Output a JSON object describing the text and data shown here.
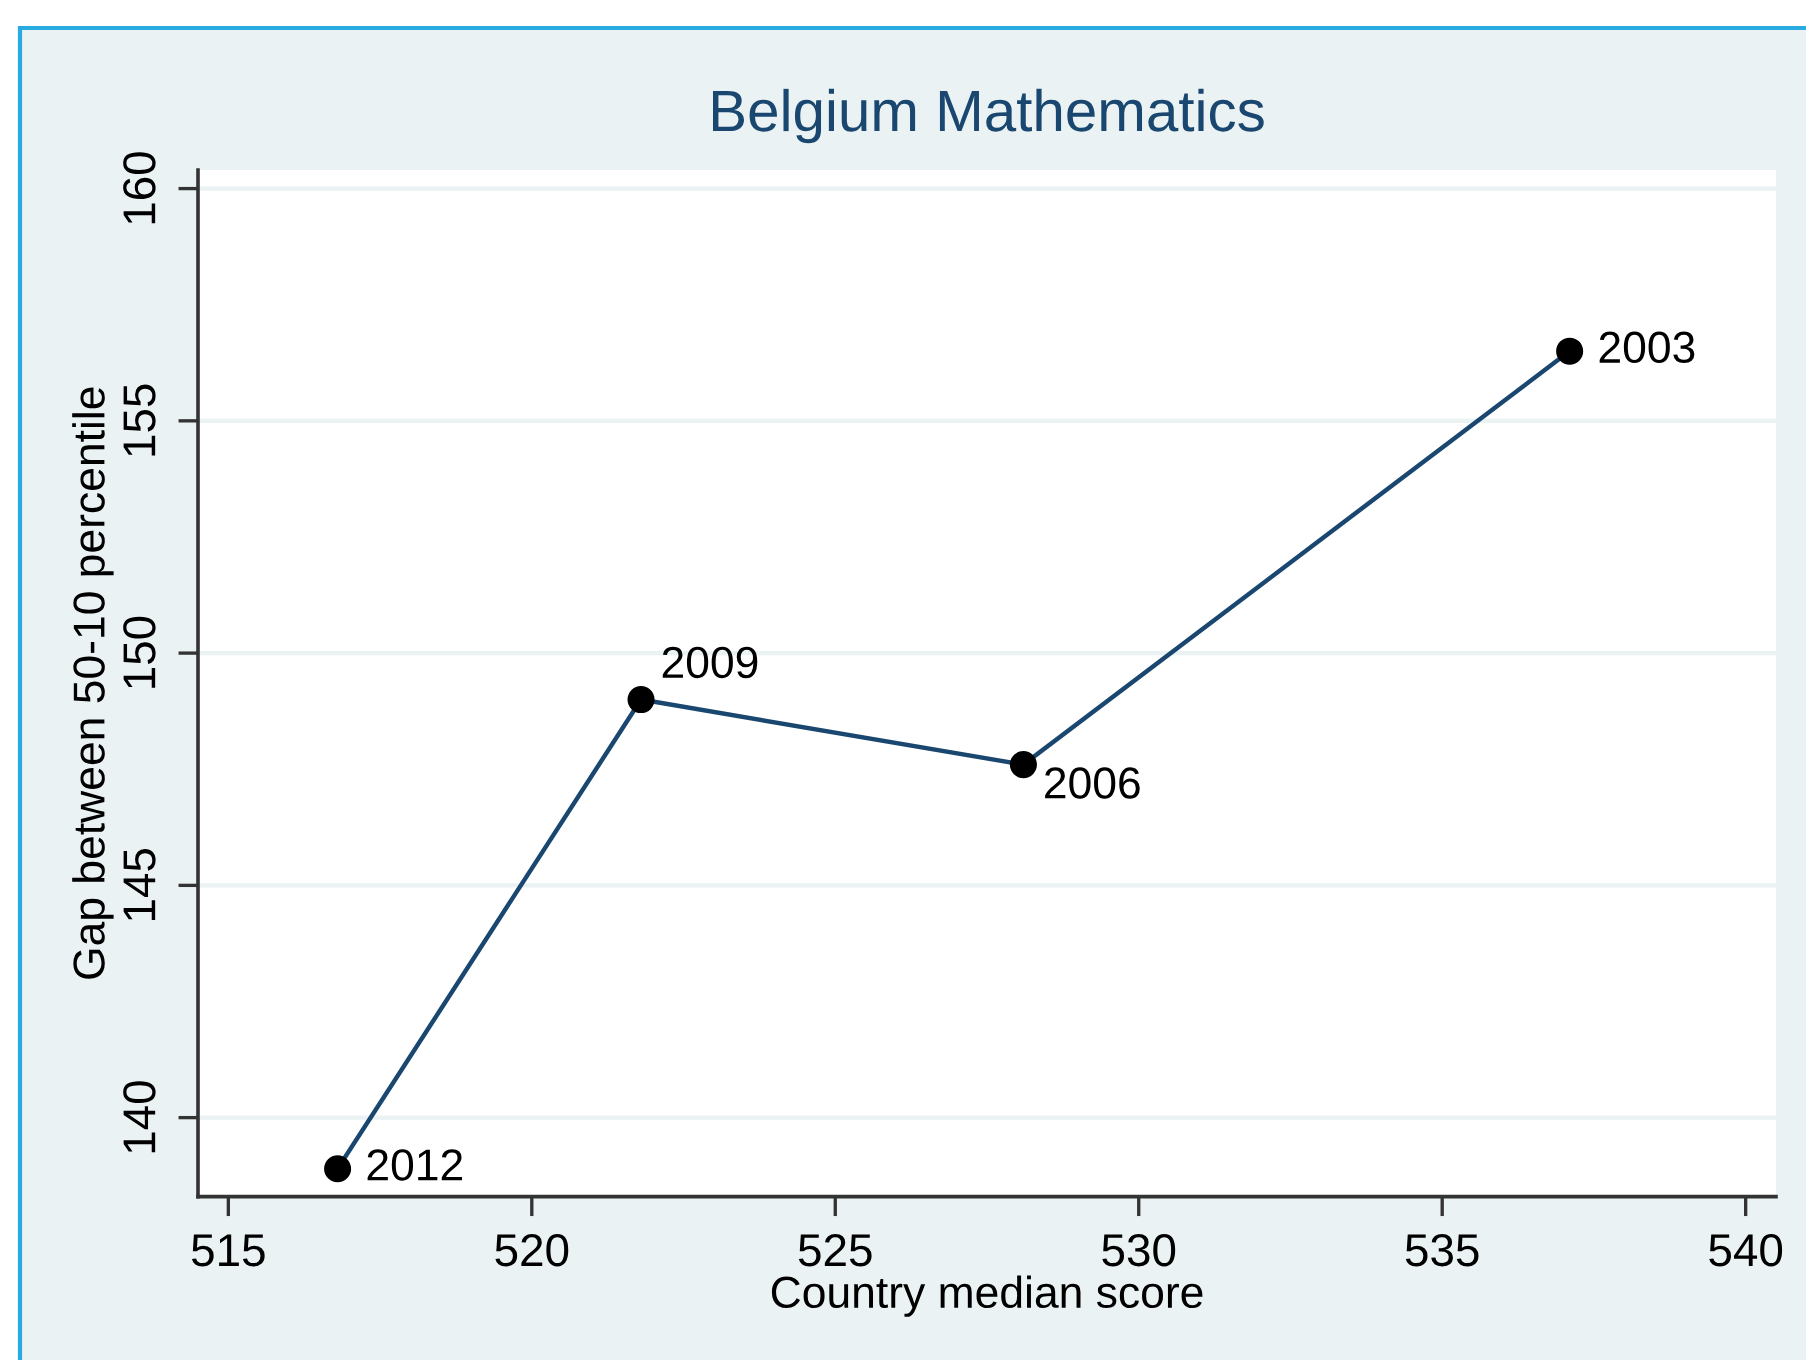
{
  "chart_data": {
    "type": "line",
    "title": "Belgium Mathematics",
    "xlabel": "Country median score",
    "ylabel": "Gap between 50-10 percentile",
    "x": [
      516.8,
      521.8,
      528.1,
      537.1
    ],
    "series": [
      {
        "color": "#1a476f",
        "colors": [
          "#000000",
          "#000000",
          "#000000",
          "#000000"
        ],
        "values": [
          138.9,
          149.0,
          147.6,
          156.5
        ]
      }
    ],
    "xlim": [
      514.5,
      540.5
    ],
    "ylim": [
      138.3,
      160.4
    ],
    "xticks": [
      515,
      520,
      525,
      530,
      535,
      540
    ],
    "yticks": [
      140,
      145,
      150,
      155,
      160
    ],
    "grid": "y",
    "marker": "circle",
    "line_style": "solid",
    "annotations": [
      {
        "text": "2012",
        "x": 516.8,
        "y": 138.9
      },
      {
        "text": "2009",
        "x": 521.8,
        "y": 149.0
      },
      {
        "text": "2006",
        "x": 528.1,
        "y": 147.6
      },
      {
        "text": "2003",
        "x": 537.1,
        "y": 156.5
      }
    ]
  }
}
